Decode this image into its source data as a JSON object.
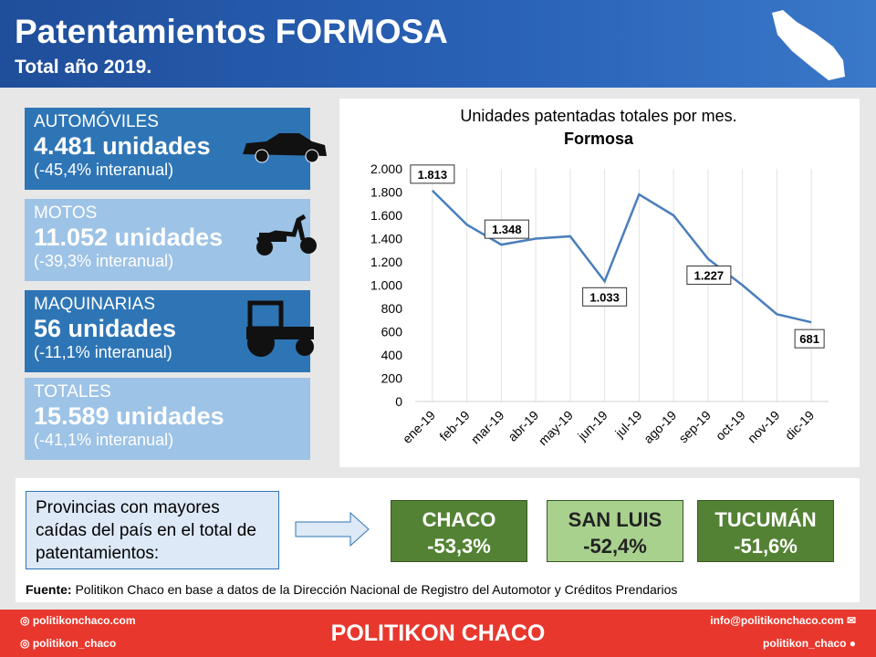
{
  "header": {
    "title": "Patentamientos FORMOSA",
    "subtitle": "Total año 2019."
  },
  "cards": [
    {
      "category": "AUTOMÓVILES",
      "units": "4.481 unidades",
      "change": "(-45,4% interanual)"
    },
    {
      "category": "MOTOS",
      "units": "11.052 unidades",
      "change": "(-39,3% interanual)"
    },
    {
      "category": "MAQUINARIAS",
      "units": "56 unidades",
      "change": "(-11,1% interanual)"
    },
    {
      "category": "TOTALES",
      "units": "15.589 unidades",
      "change": "(-41,1% interanual)"
    }
  ],
  "chart_data": {
    "type": "line",
    "title": "Unidades  patentadas  totales por mes.",
    "subtitle": "Formosa",
    "categories": [
      "ene-19",
      "feb-19",
      "mar-19",
      "abr-19",
      "may-19",
      "jun-19",
      "jul-19",
      "ago-19",
      "sep-19",
      "oct-19",
      "nov-19",
      "dic-19"
    ],
    "values": [
      1813,
      1520,
      1348,
      1400,
      1420,
      1033,
      1780,
      1600,
      1227,
      1000,
      750,
      681
    ],
    "value_labels": [
      "1.813",
      null,
      "1.348",
      null,
      null,
      "1.033",
      null,
      null,
      "1.227",
      null,
      null,
      "681"
    ],
    "color": "#4a7ebb",
    "ylim": [
      0,
      2000
    ],
    "yticks": [
      0,
      200,
      400,
      600,
      800,
      {
        "value": 1000,
        "label": "1.000"
      },
      {
        "value": 1200,
        "label": "1.200"
      },
      {
        "value": 1400,
        "label": "1.400"
      },
      {
        "value": 1600,
        "label": "1.600"
      },
      {
        "value": 1800,
        "label": "1.800"
      },
      {
        "value": 2000,
        "label": "2.000"
      }
    ]
  },
  "provinces": {
    "intro": "Provincias con mayores caídas del país en el total de patentamientos:",
    "items": [
      {
        "name": "CHACO",
        "change": "-53,3%"
      },
      {
        "name": "SAN LUIS",
        "change": "-52,4%"
      },
      {
        "name": "TUCUMÁN",
        "change": "-51,6%"
      }
    ]
  },
  "source": {
    "label": "Fuente:",
    "text": "Politikon Chaco en base a datos de la Dirección Nacional de Registro del Automotor y Créditos Prendarios"
  },
  "footer": {
    "web": "politikonchaco.com",
    "instagram": "politikon_chaco",
    "brand": "POLITIKON CHACO",
    "email": "info@politikonchaco.com",
    "twitter": "politikon_chaco"
  }
}
